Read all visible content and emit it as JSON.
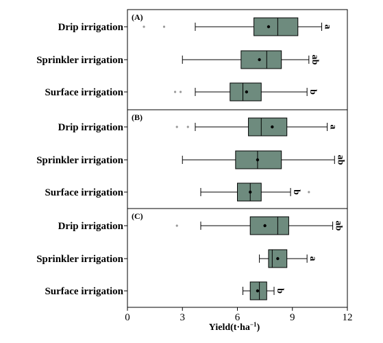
{
  "chart_data": {
    "type": "boxplot",
    "orientation": "horizontal",
    "xlabel_main": "Yield(t·ha",
    "xlabel_sup": "−1",
    "xlabel_close": ")",
    "xlim": [
      0,
      12
    ],
    "xticks": [
      0,
      3,
      6,
      9,
      12
    ],
    "box_color": "#6e8b7e",
    "outlier_color": "#999999",
    "panels": [
      {
        "label": "(A)",
        "groups": [
          {
            "name": "Drip irrigation",
            "whisker_low": 3.7,
            "q1": 6.9,
            "median": 8.2,
            "q3": 9.3,
            "whisker_high": 10.6,
            "mean": 7.7,
            "outliers": [
              0.9,
              2.0
            ],
            "letter": "a"
          },
          {
            "name": "Sprinkler irrigation",
            "whisker_low": 3.0,
            "q1": 6.2,
            "median": 7.6,
            "q3": 8.4,
            "whisker_high": 9.9,
            "mean": 7.2,
            "outliers": [],
            "letter": "ab"
          },
          {
            "name": "Surface irrigation",
            "whisker_low": 3.7,
            "q1": 5.6,
            "median": 6.3,
            "q3": 7.3,
            "whisker_high": 9.8,
            "mean": 6.5,
            "outliers": [
              2.6,
              2.9
            ],
            "letter": "b"
          }
        ]
      },
      {
        "label": "(B)",
        "groups": [
          {
            "name": "Drip irrigation",
            "whisker_low": 3.7,
            "q1": 6.6,
            "median": 7.3,
            "q3": 8.7,
            "whisker_high": 10.9,
            "mean": 7.9,
            "outliers": [
              2.7,
              3.3
            ],
            "letter": "a"
          },
          {
            "name": "Sprinkler irrigation",
            "whisker_low": 3.0,
            "q1": 5.9,
            "median": 7.1,
            "q3": 8.4,
            "whisker_high": 11.3,
            "mean": 7.1,
            "outliers": [],
            "letter": "ab"
          },
          {
            "name": "Surface irrigation",
            "whisker_low": 4.0,
            "q1": 6.0,
            "median": 6.7,
            "q3": 7.3,
            "whisker_high": 8.9,
            "mean": 6.7,
            "outliers": [
              9.9
            ],
            "letter": "b"
          }
        ]
      },
      {
        "label": "(C)",
        "groups": [
          {
            "name": "Drip irrigation",
            "whisker_low": 4.0,
            "q1": 6.7,
            "median": 8.2,
            "q3": 8.8,
            "whisker_high": 11.2,
            "mean": 7.5,
            "outliers": [
              2.7
            ],
            "letter": "ab"
          },
          {
            "name": "Sprinkler irrigation",
            "whisker_low": 7.2,
            "q1": 7.7,
            "median": 7.9,
            "q3": 8.7,
            "whisker_high": 9.8,
            "mean": 8.2,
            "outliers": [],
            "letter": "a"
          },
          {
            "name": "Surface irrigation",
            "whisker_low": 6.3,
            "q1": 6.7,
            "median": 7.2,
            "q3": 7.6,
            "whisker_high": 8.0,
            "mean": 7.1,
            "outliers": [],
            "letter": "b"
          }
        ]
      }
    ]
  }
}
